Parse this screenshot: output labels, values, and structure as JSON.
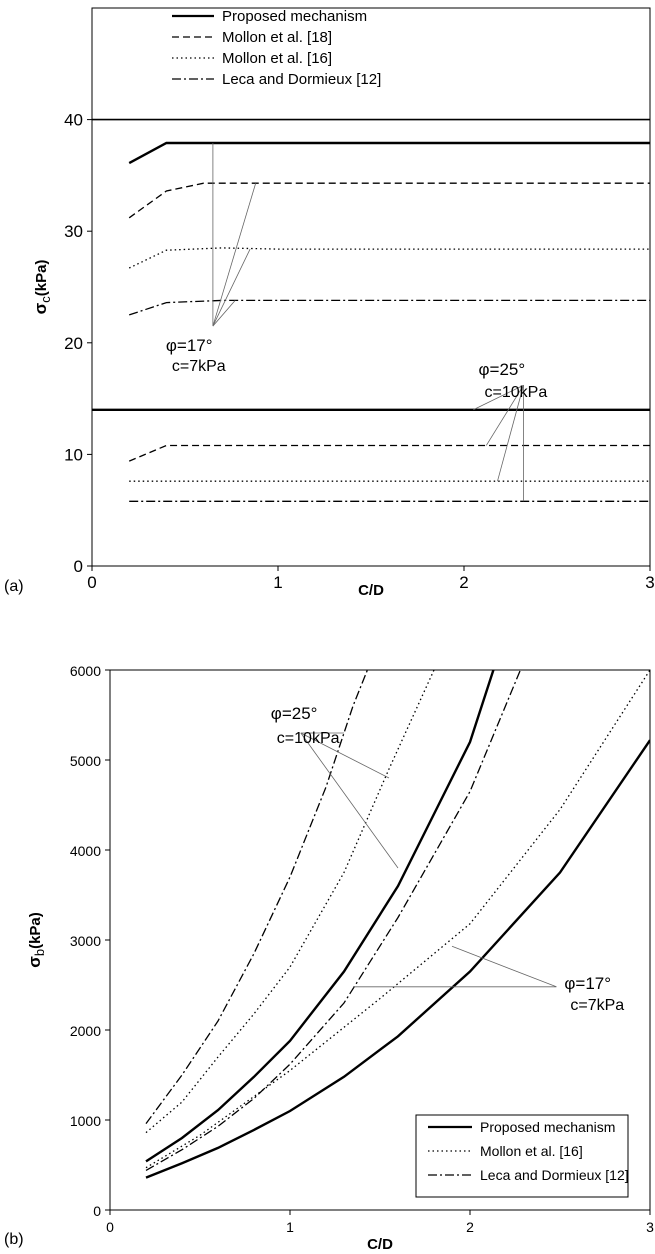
{
  "chart_data": [
    {
      "panel_label": "(a)",
      "type": "line",
      "xlabel": "C/D",
      "ylabel_main": "σ",
      "ylabel_sub": "c",
      "ylabel_unit": "(kPa)",
      "xlim": [
        0,
        3
      ],
      "ylim": [
        0,
        50
      ],
      "xticks": [
        0,
        1,
        2,
        3
      ],
      "yticks": [
        0,
        10,
        20,
        30,
        40
      ],
      "grid": false,
      "legend_position": "top-left (inside)",
      "legend": [
        {
          "label": "Proposed mechanism",
          "style": "solid"
        },
        {
          "label": "Mollon et al. [18]",
          "style": "dashed"
        },
        {
          "label": "Mollon et al. [16]",
          "style": "dotted"
        },
        {
          "label": "Leca and Dormieux [12]",
          "style": "dashdot"
        }
      ],
      "reference_line_y": 40,
      "series": [
        {
          "group": "17",
          "style": "solid",
          "points": [
            [
              0.2,
              36.1
            ],
            [
              0.4,
              37.9
            ],
            [
              3.0,
              37.9
            ]
          ]
        },
        {
          "group": "17",
          "style": "dashed",
          "points": [
            [
              0.2,
              31.2
            ],
            [
              0.4,
              33.6
            ],
            [
              0.6,
              34.3
            ],
            [
              3.0,
              34.3
            ]
          ]
        },
        {
          "group": "17",
          "style": "dotted",
          "points": [
            [
              0.2,
              26.7
            ],
            [
              0.4,
              28.3
            ],
            [
              0.7,
              28.5
            ],
            [
              1.0,
              28.4
            ],
            [
              3.0,
              28.4
            ]
          ]
        },
        {
          "group": "17",
          "style": "dashdot",
          "points": [
            [
              0.2,
              22.5
            ],
            [
              0.4,
              23.6
            ],
            [
              0.7,
              23.8
            ],
            [
              3.0,
              23.8
            ]
          ]
        },
        {
          "group": "25",
          "style": "solid",
          "points": [
            [
              0.0,
              14.0
            ],
            [
              3.0,
              14.0
            ]
          ]
        },
        {
          "group": "25",
          "style": "dashed",
          "points": [
            [
              0.2,
              9.4
            ],
            [
              0.4,
              10.8
            ],
            [
              3.0,
              10.8
            ]
          ]
        },
        {
          "group": "25",
          "style": "dotted",
          "points": [
            [
              0.2,
              7.6
            ],
            [
              3.0,
              7.6
            ]
          ]
        },
        {
          "group": "25",
          "style": "dashdot",
          "points": [
            [
              0.2,
              5.8
            ],
            [
              3.0,
              5.8
            ]
          ]
        }
      ],
      "annotations": [
        {
          "phi_text": "φ=17°",
          "c_text": "c=7kPa",
          "anchor": [
            0.65,
            21.5
          ],
          "pointers": [
            [
              0.65,
              37.9
            ],
            [
              0.88,
              34.3
            ],
            [
              0.85,
              28.4
            ],
            [
              0.77,
              23.8
            ]
          ]
        },
        {
          "phi_text": "φ=25°",
          "c_text": "c=10kPa",
          "anchor": [
            2.32,
            16.2
          ],
          "pointers": [
            [
              2.05,
              14.0
            ],
            [
              2.12,
              10.8
            ],
            [
              2.18,
              7.6
            ],
            [
              2.32,
              5.8
            ]
          ]
        }
      ]
    },
    {
      "panel_label": "(b)",
      "type": "line",
      "xlabel": "C/D",
      "ylabel_main": "σ",
      "ylabel_sub": "b",
      "ylabel_unit": "(kPa)",
      "xlim": [
        0,
        3
      ],
      "ylim": [
        0,
        6000
      ],
      "xticks": [
        0,
        1,
        2,
        3
      ],
      "yticks": [
        0,
        1000,
        2000,
        3000,
        4000,
        5000,
        6000
      ],
      "grid": false,
      "legend_position": "bottom-right (inside)",
      "legend": [
        {
          "label": "Proposed mechanism",
          "style": "solid"
        },
        {
          "label": "Mollon et al. [16]",
          "style": "dotted"
        },
        {
          "label": "Leca and Dormieux [12]",
          "style": "dashdot"
        }
      ],
      "series": [
        {
          "group": "25",
          "style": "solid",
          "points": [
            [
              0.2,
              540
            ],
            [
              0.4,
              800
            ],
            [
              0.6,
              1110
            ],
            [
              0.8,
              1480
            ],
            [
              1.0,
              1880
            ],
            [
              1.3,
              2650
            ],
            [
              1.6,
              3600
            ],
            [
              1.8,
              4400
            ],
            [
              2.0,
              5200
            ],
            [
              2.13,
              6000
            ]
          ]
        },
        {
          "group": "25",
          "style": "dotted",
          "points": [
            [
              0.2,
              860
            ],
            [
              0.4,
              1200
            ],
            [
              0.6,
              1700
            ],
            [
              0.8,
              2180
            ],
            [
              1.0,
              2700
            ],
            [
              1.3,
              3750
            ],
            [
              1.55,
              4900
            ],
            [
              1.8,
              6000
            ]
          ]
        },
        {
          "group": "25",
          "style": "dashdot",
          "points": [
            [
              0.2,
              960
            ],
            [
              0.4,
              1500
            ],
            [
              0.6,
              2100
            ],
            [
              0.8,
              2850
            ],
            [
              1.0,
              3700
            ],
            [
              1.2,
              4700
            ],
            [
              1.35,
              5600
            ],
            [
              1.43,
              6000
            ]
          ]
        },
        {
          "group": "17",
          "style": "solid",
          "points": [
            [
              0.2,
              360
            ],
            [
              0.4,
              520
            ],
            [
              0.6,
              690
            ],
            [
              0.8,
              890
            ],
            [
              1.0,
              1100
            ],
            [
              1.3,
              1480
            ],
            [
              1.6,
              1930
            ],
            [
              2.0,
              2650
            ],
            [
              2.5,
              3750
            ],
            [
              3.0,
              5220
            ]
          ]
        },
        {
          "group": "17",
          "style": "dotted",
          "points": [
            [
              0.2,
              470
            ],
            [
              0.5,
              830
            ],
            [
              1.0,
              1550
            ],
            [
              1.5,
              2350
            ],
            [
              2.0,
              3180
            ],
            [
              2.5,
              4450
            ],
            [
              3.0,
              6000
            ]
          ]
        },
        {
          "group": "17",
          "style": "dashdot",
          "points": [
            [
              0.2,
              440
            ],
            [
              0.4,
              670
            ],
            [
              0.6,
              930
            ],
            [
              0.8,
              1240
            ],
            [
              1.0,
              1620
            ],
            [
              1.3,
              2300
            ],
            [
              1.6,
              3250
            ],
            [
              2.0,
              4650
            ],
            [
              2.28,
              6000
            ]
          ]
        }
      ],
      "annotations": [
        {
          "phi_text": "φ=25°",
          "c_text": "c=10kPa",
          "anchor": [
            1.06,
            5300
          ],
          "pointers": [
            [
              1.3,
              5300
            ],
            [
              1.55,
              4800
            ],
            [
              1.6,
              3800
            ]
          ]
        },
        {
          "phi_text": "φ=17°",
          "c_text": "c=7kPa",
          "anchor": [
            2.48,
            2480
          ],
          "pointers": [
            [
              1.9,
              2930
            ],
            [
              1.35,
              2480
            ]
          ]
        }
      ]
    }
  ]
}
